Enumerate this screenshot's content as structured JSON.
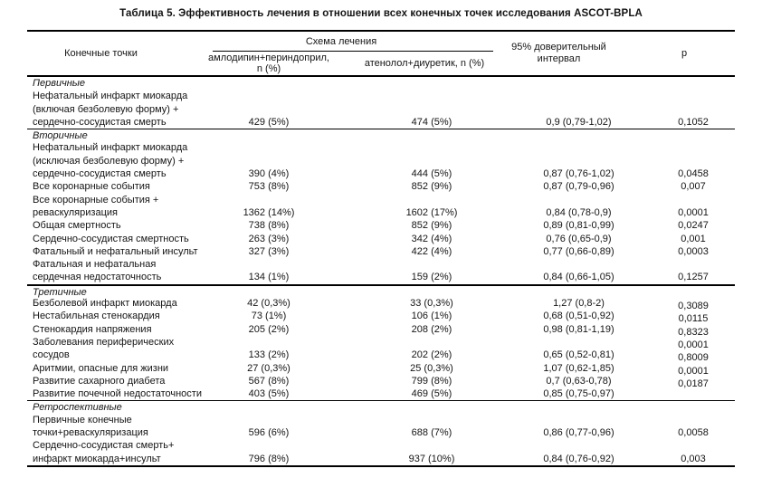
{
  "title": "Таблица 5. Эффективность лечения в отношении всех конечных точек исследования ASCOT-BPLA",
  "header": {
    "endpoints": "Конечные точки",
    "scheme_group": "Схема лечения",
    "col_amlodipine": "амлодипин+периндоприл, n (%)",
    "col_atenolol": "атенолол+диуретик, n (%)",
    "ci": "95% доверительный интервал",
    "p": "р"
  },
  "table": {
    "sections": [
      {
        "name": "Первичные",
        "separator": "none",
        "p_shift": false,
        "rows": [
          {
            "label": "Нефатальный инфаркт миокарда",
            "amlodipine": "",
            "atenolol": "",
            "ci": "",
            "p": ""
          },
          {
            "label": "(включая безболевую форму) +",
            "amlodipine": "",
            "atenolol": "",
            "ci": "",
            "p": ""
          },
          {
            "label": "сердечно-сосудистая смерть",
            "amlodipine": "429 (5%)",
            "atenolol": "474 (5%)",
            "ci": "0,9 (0,79-1,02)",
            "p": "0,1052"
          }
        ]
      },
      {
        "name": "Вторичные",
        "separator": "thin",
        "p_shift": false,
        "rows": [
          {
            "label": "Нефатальный инфаркт миокарда",
            "amlodipine": "",
            "atenolol": "",
            "ci": "",
            "p": ""
          },
          {
            "label": "(исключая безболевую форму) +",
            "amlodipine": "",
            "atenolol": "",
            "ci": "",
            "p": ""
          },
          {
            "label": "сердечно-сосудистая смерть",
            "amlodipine": "390 (4%)",
            "atenolol": "444 (5%)",
            "ci": "0,87 (0,76-1,02)",
            "p": "0,0458"
          },
          {
            "label": "Все коронарные события",
            "amlodipine": "753 (8%)",
            "atenolol": "852 (9%)",
            "ci": "0,87 (0,79-0,96)",
            "p": "0,007"
          },
          {
            "label": "Все коронарные события +",
            "amlodipine": "",
            "atenolol": "",
            "ci": "",
            "p": ""
          },
          {
            "label": "реваскуляризация",
            "amlodipine": "1362 (14%)",
            "atenolol": "1602 (17%)",
            "ci": "0,84 (0,78-0,9)",
            "p": "0,0001"
          },
          {
            "label": "Общая смертность",
            "amlodipine": "738 (8%)",
            "atenolol": "852 (9%)",
            "ci": "0,89 (0,81-0,99)",
            "p": "0,0247"
          },
          {
            "label": "Сердечно-сосудистая смертность",
            "amlodipine": "263 (3%)",
            "atenolol": "342 (4%)",
            "ci": "0,76 (0,65-0,9)",
            "p": "0,001"
          },
          {
            "label": "Фатальный и нефатальный инсульт",
            "amlodipine": "327 (3%)",
            "atenolol": "422 (4%)",
            "ci": "0,77 (0,66-0,89)",
            "p": "0,0003"
          },
          {
            "label": "Фатальная и нефатальная",
            "amlodipine": "",
            "atenolol": "",
            "ci": "",
            "p": ""
          },
          {
            "label": "сердечная недостаточность",
            "amlodipine": "134 (1%)",
            "atenolol": "159 (2%)",
            "ci": "0,84 (0,66-1,05)",
            "p": "0,1257"
          }
        ]
      },
      {
        "name": "Третичные",
        "separator": "thick",
        "p_shift": true,
        "rows": [
          {
            "label": "Безболевой инфаркт миокарда",
            "amlodipine": "42 (0,3%)",
            "atenolol": "33 (0,3%)",
            "ci": "1,27 (0,8-2)",
            "p": "0,3089"
          },
          {
            "label": "Нестабильная стенокардия",
            "amlodipine": "73 (1%)",
            "atenolol": "106 (1%)",
            "ci": "0,68 (0,51-0,92)",
            "p": "0,0115"
          },
          {
            "label": "Стенокардия напряжения",
            "amlodipine": "205 (2%)",
            "atenolol": "208 (2%)",
            "ci": "0,98 (0,81-1,19)",
            "p": "0,8323"
          },
          {
            "label": "Заболевания периферических",
            "amlodipine": "",
            "atenolol": "",
            "ci": "",
            "p": "0,0001"
          },
          {
            "label": "сосудов",
            "amlodipine": "133 (2%)",
            "atenolol": "202 (2%)",
            "ci": "0,65 (0,52-0,81)",
            "p": "0,8009"
          },
          {
            "label": "Аритмии, опасные для жизни",
            "amlodipine": "27 (0,3%)",
            "atenolol": "25 (0,3%)",
            "ci": "1,07 (0,62-1,85)",
            "p": "0,0001"
          },
          {
            "label": "Развитие сахарного диабета",
            "amlodipine": "567 (8%)",
            "atenolol": "799 (8%)",
            "ci": "0,7 (0,63-0,78)",
            "p": "0,0187"
          },
          {
            "label": "Развитие почечной недостаточности",
            "amlodipine": "403 (5%)",
            "atenolol": "469 (5%)",
            "ci": "0,85 (0,75-0,97)",
            "p": ""
          }
        ]
      },
      {
        "name": "Ретроспективные",
        "separator": "thin",
        "p_shift": false,
        "rows": [
          {
            "label": "Первичные конечные",
            "amlodipine": "",
            "atenolol": "",
            "ci": "",
            "p": ""
          },
          {
            "label": "точки+реваскуляризация",
            "amlodipine": "596 (6%)",
            "atenolol": "688 (7%)",
            "ci": "0,86 (0,77-0,96)",
            "p": "0,0058"
          },
          {
            "label": "Сердечно-сосудистая смерть+",
            "amlodipine": "",
            "atenolol": "",
            "ci": "",
            "p": ""
          },
          {
            "label": "инфаркт миокарда+инсульт",
            "amlodipine": "796 (8%)",
            "atenolol": "937 (10%)",
            "ci": "0,84 (0,76-0,92)",
            "p": "0,003"
          }
        ]
      }
    ]
  }
}
